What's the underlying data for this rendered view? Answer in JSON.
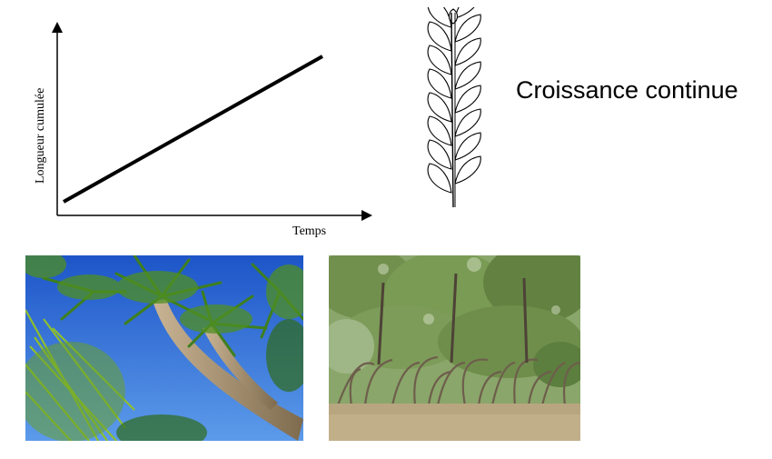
{
  "graph": {
    "ylabel": "Longueur cumulée",
    "xlabel": "Temps",
    "line_color": "#000000"
  },
  "caption": "Croissance continue",
  "photos": {
    "left": "palm-trees",
    "right": "mangrove"
  }
}
